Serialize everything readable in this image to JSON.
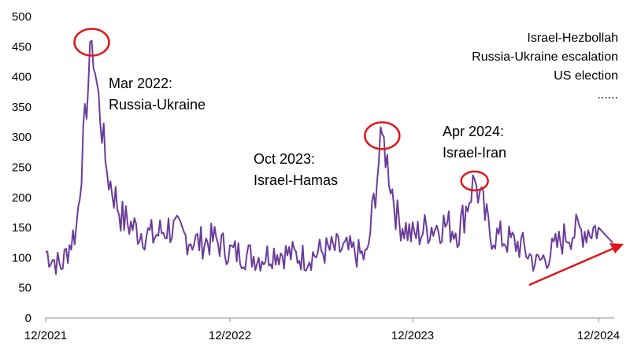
{
  "chart_data": {
    "type": "line",
    "title": "",
    "xlabel": "",
    "ylabel": "",
    "ylim": [
      0,
      500
    ],
    "yticks": [
      "0",
      "50",
      "100",
      "150",
      "200",
      "250",
      "300",
      "350",
      "400",
      "450",
      "500"
    ],
    "xticks": [
      "12/2021",
      "12/2022",
      "12/2023",
      "12/2024"
    ],
    "grid": false,
    "line_color": "#6a3d9a",
    "highlight_color": "#e0161b",
    "trend_arrow": true,
    "series": [
      {
        "x": [
          "2021-12",
          "2022-01",
          "2022-02",
          "2022-03",
          "2022-04",
          "2022-05",
          "2022-06",
          "2022-07",
          "2022-08",
          "2022-09",
          "2022-10",
          "2022-11",
          "2022-12",
          "2023-01",
          "2023-02",
          "2023-03",
          "2023-04",
          "2023-05",
          "2023-06",
          "2023-07",
          "2023-08",
          "2023-09",
          "2023-10",
          "2023-11",
          "2023-12",
          "2024-01",
          "2024-02",
          "2024-03",
          "2024-04",
          "2024-05",
          "2024-06",
          "2024-07",
          "2024-08",
          "2024-09",
          "2024-10",
          "2024-11",
          "2024-12"
        ],
        "values": [
          110,
          85,
          150,
          460,
          240,
          165,
          145,
          135,
          150,
          135,
          125,
          130,
          110,
          105,
          100,
          110,
          105,
          100,
          110,
          115,
          110,
          100,
          305,
          165,
          135,
          150,
          155,
          145,
          230,
          140,
          130,
          120,
          90,
          110,
          140,
          145,
          150
        ]
      }
    ],
    "annotations": [
      {
        "lines": [
          "Mar 2022:",
          "Russia-Ukraine"
        ],
        "x": "2022-03",
        "value": 460
      },
      {
        "lines": [
          "Oct 2023:",
          "Israel-Hamas"
        ],
        "x": "2023-10",
        "value": 305
      },
      {
        "lines": [
          "Apr 2024:",
          "Israel-Iran"
        ],
        "x": "2024-04",
        "value": 230
      }
    ],
    "note_lines": [
      "Israel-Hezbollah",
      "Russia-Ukraine escalation",
      "US election",
      "......"
    ]
  }
}
